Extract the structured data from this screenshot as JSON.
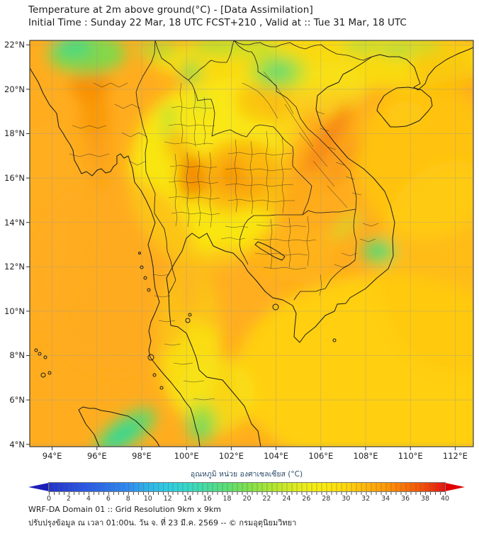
{
  "header": {
    "title": "Temperature at 2m above ground(°C) - [Data Assimilation]",
    "subtitle": "Initial Time : Sunday 22 Mar, 18 UTC FCST+210 , Valid at :: Tue 31 Mar, 18 UTC"
  },
  "map": {
    "y_axis_labels": [
      "22°N",
      "20°N",
      "18°N",
      "16°N",
      "14°N",
      "12°N",
      "10°N",
      "8°N",
      "6°N",
      "4°N"
    ],
    "x_axis_labels": [
      "94°E",
      "96°E",
      "98°E",
      "100°E",
      "102°E",
      "104°E",
      "106°E",
      "108°E",
      "110°E",
      "112°E"
    ]
  },
  "colorbar": {
    "label": "อุณหภูมิ หน่วย องศาเซลเซียส (°C)",
    "tick_values": [
      0,
      2,
      4,
      6,
      8,
      10,
      12,
      14,
      16,
      18,
      20,
      22,
      24,
      26,
      28,
      30,
      32,
      34,
      36,
      38,
      40
    ],
    "range": [
      0,
      40
    ]
  },
  "footer": {
    "line1": "WRF-DA Domain 01 :: Grid Resolution 9km x 9km",
    "line2": "ปรับปรุงข้อมูล ณ เวลา 01:00น. วัน จ. ที่ 23 มี.ค. 2569 -- © กรมอุตุนิยมวิทยา"
  },
  "chart_data": {
    "type": "heatmap",
    "title": "Temperature at 2m above ground(°C) - [Data Assimilation]",
    "subtitle": "Initial Time : Sunday 22 Mar, 18 UTC FCST+210 , Valid at :: Tue 31 Mar, 18 UTC",
    "region": "Southeast Asia (Thailand, Myanmar, Laos, Cambodia, Vietnam, Hainan, N. Sumatra)",
    "x_axis": {
      "label": "Longitude",
      "tick_labels_deg_E": [
        94,
        96,
        98,
        100,
        102,
        104,
        106,
        108,
        110,
        112
      ],
      "range_deg_E": [
        93.0,
        112.8
      ],
      "grid": true
    },
    "y_axis": {
      "label": "Latitude",
      "tick_labels_deg_N": [
        22,
        20,
        18,
        16,
        14,
        12,
        10,
        8,
        6,
        4
      ],
      "range_deg_N": [
        3.9,
        22.2
      ],
      "grid": true
    },
    "colorbar": {
      "label_thai": "อุณหภูมิ หน่วย องศาเซลเซียส (°C)",
      "units": "°C",
      "min": 0,
      "max": 40,
      "tick_step": 2,
      "segment_step": 0.5,
      "extend_arrows": "both",
      "gradient_stops": [
        {
          "value": 0,
          "color": "#2233cc"
        },
        {
          "value": 4,
          "color": "#2a5ce8"
        },
        {
          "value": 8,
          "color": "#2f8bf0"
        },
        {
          "value": 12,
          "color": "#2fcce2"
        },
        {
          "value": 16,
          "color": "#47dc9c"
        },
        {
          "value": 20,
          "color": "#7ee04e"
        },
        {
          "value": 24,
          "color": "#cdea24"
        },
        {
          "value": 28,
          "color": "#fce90f"
        },
        {
          "value": 30,
          "color": "#ffd60d"
        },
        {
          "value": 32,
          "color": "#ffb60a"
        },
        {
          "value": 34,
          "color": "#ff9807"
        },
        {
          "value": 36,
          "color": "#fb7104"
        },
        {
          "value": 40,
          "color": "#e81212"
        }
      ]
    },
    "field_features": [
      {
        "area": "Andaman Sea / Bay of Bengal / Gulf of Thailand",
        "approx_temp_c": 30,
        "appearance": "orange"
      },
      {
        "area": "South China Sea, south-east quadrant",
        "approx_temp_c": 29,
        "appearance": "gold-yellow"
      },
      {
        "area": "Central and NE Thailand land, Thai peninsula, N Vietnam land",
        "approx_temp_c": 28,
        "appearance": "yellow"
      },
      {
        "area": "Central Myanmar valley ~95.5E 17-21N",
        "approx_temp_c": 33,
        "appearance": "dark orange chain"
      },
      {
        "area": "N-central Thailand hot spot ~100E 16N",
        "approx_temp_c": 33,
        "appearance": "dark orange"
      },
      {
        "area": "NE Thailand / S Laos patches ~101-105E 14-17N",
        "approx_temp_c": 31,
        "appearance": "orange"
      },
      {
        "area": "Annamite ridge along Vietnam coast ~105.5-107E 16.5-19.5N",
        "approx_temp_c": 32,
        "appearance": "orange ridge"
      },
      {
        "area": "Cool patch NW Myanmar ~95-96.5E 21-22N",
        "approx_temp_c": 24,
        "appearance": "green/teal"
      },
      {
        "area": "Cool patch NE Laos ~103.5-104.5E 20.5-21N",
        "approx_temp_c": 24,
        "appearance": "green with teal core"
      },
      {
        "area": "Cool spots along 22N China border 100-110E",
        "approx_temp_c": 25,
        "appearance": "green fringes"
      },
      {
        "area": "Cool spot S Vietnam highlands ~108.5E 12.6N",
        "approx_temp_c": 25,
        "appearance": "green/teal"
      },
      {
        "area": "Cool band N Sumatra ~96.5-98E 4-5N and S peninsula ~100.5E 5N",
        "approx_temp_c": 22,
        "appearance": "green/teal"
      }
    ]
  }
}
